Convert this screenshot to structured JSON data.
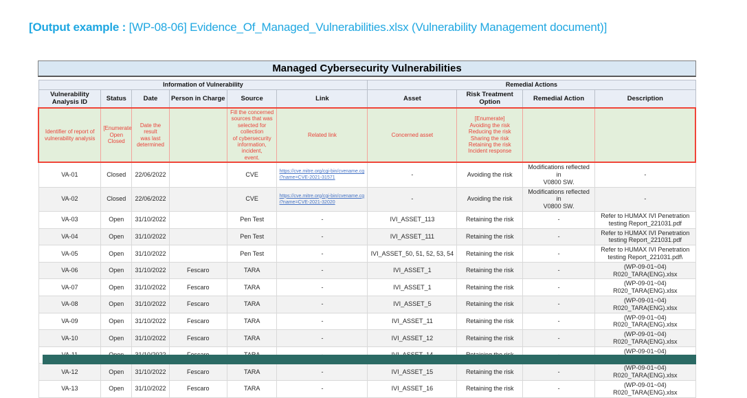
{
  "caption": {
    "bold": "[Output example :",
    "rest": " [WP-08-06] Evidence_Of_Managed_Vulnerabilities.xlsx (Vulnerability Management document)]"
  },
  "colors": {
    "caption_accent": "#1FA7E1",
    "sheet_title_bg": "#D9E7F3",
    "header_bg": "#E9EEF6",
    "instruction_bg": "#E3EFDB",
    "instruction_border": "#F04438",
    "instruction_text": "#E8433A",
    "link_blue": "#4472C4",
    "alt_row_bg": "#F2F2F2",
    "bottom_bar": "#2B6A64"
  },
  "table": {
    "title": "Managed Cybersecurity Vulnerabilities",
    "group_headers": [
      "Information of Vulnerability",
      "Remedial Actions"
    ],
    "columns": [
      "Vulnerability\nAnalysis ID",
      "Status",
      "Date",
      "Person in Charge",
      "Source",
      "Link",
      "Asset",
      "Risk Treatment Option",
      "Remedial Action",
      "Description"
    ],
    "instruction_row": [
      "Identifier of report of\nvulnerability analysis",
      "[Enumerate]\nOpen\nClosed",
      "Date the result\nwas last\ndetermined",
      "",
      "Fill the concerned\nsources that was\nselected for collection\nof cybersecurity\ninformation, incident,\nevent.",
      "Related link",
      "Concerned asset",
      "[Enumerate]\nAvoiding the risk\nReducing the risk\nSharing the risk\nRetaining the risk\nIncident response",
      "",
      ""
    ],
    "rows": [
      [
        "VA-01",
        "Closed",
        "22/06/2022",
        "",
        "CVE",
        "https://cve.mitre.org/cgi-bin/cvename.cgi?name=CVE-2021-31571",
        "-",
        "Avoiding the risk",
        "Modifications reflected in\nV0800 SW.",
        "-"
      ],
      [
        "VA-02",
        "Closed",
        "22/06/2022",
        "",
        "CVE",
        "https://cve.mitre.org/cgi-bin/cvename.cgi?name=CVE-2021-32020",
        "-",
        "Avoiding the risk",
        "Modifications reflected in\nV0800 SW.",
        "-"
      ],
      [
        "VA-03",
        "Open",
        "31/10/2022",
        "",
        "Pen Test",
        "-",
        "IVI_ASSET_113",
        "Retaining the risk",
        "-",
        "Refer to HUMAX IVI Penetration\ntesting Report_221031.pdf"
      ],
      [
        "VA-04",
        "Open",
        "31/10/2022",
        "",
        "Pen Test",
        "-",
        "IVI_ASSET_111",
        "Retaining the risk",
        "-",
        "Refer to HUMAX IVI Penetration\ntesting Report_221031.pdf"
      ],
      [
        "VA-05",
        "Open",
        "31/10/2022",
        "",
        "Pen Test",
        "-",
        "IVI_ASSET_50, 51, 52, 53, 54",
        "Retaining the risk",
        "-",
        "Refer to HUMAX IVI Penetration\ntesting Report_221031.pdf\\"
      ],
      [
        "VA-06",
        "Open",
        "31/10/2022",
        "Fescaro",
        "TARA",
        "-",
        "IVI_ASSET_1",
        "Retaining the risk",
        "-",
        "(WP-09-01~04)\nR020_TARA(ENG).xlsx"
      ],
      [
        "VA-07",
        "Open",
        "31/10/2022",
        "Fescaro",
        "TARA",
        "-",
        "IVI_ASSET_1",
        "Retaining the risk",
        "-",
        "(WP-09-01~04)\nR020_TARA(ENG).xlsx"
      ],
      [
        "VA-08",
        "Open",
        "31/10/2022",
        "Fescaro",
        "TARA",
        "-",
        "IVI_ASSET_5",
        "Retaining the risk",
        "-",
        "(WP-09-01~04)\nR020_TARA(ENG).xlsx"
      ],
      [
        "VA-09",
        "Open",
        "31/10/2022",
        "Fescaro",
        "TARA",
        "-",
        "IVI_ASSET_11",
        "Retaining the risk",
        "-",
        "(WP-09-01~04)\nR020_TARA(ENG).xlsx"
      ],
      [
        "VA-10",
        "Open",
        "31/10/2022",
        "Fescaro",
        "TARA",
        "-",
        "IVI_ASSET_12",
        "Retaining the risk",
        "-",
        "(WP-09-01~04)\nR020_TARA(ENG).xlsx"
      ],
      [
        "VA-11",
        "Open",
        "31/10/2022",
        "Fescaro",
        "TARA",
        "-",
        "IVI_ASSET_14",
        "Retaining the risk",
        "-",
        "(WP-09-01~04)\nR020_TARA(ENG).xlsx"
      ],
      [
        "VA-12",
        "Open",
        "31/10/2022",
        "Fescaro",
        "TARA",
        "-",
        "IVI_ASSET_15",
        "Retaining the risk",
        "-",
        "(WP-09-01~04)\nR020_TARA(ENG).xlsx"
      ],
      [
        "VA-13",
        "Open",
        "31/10/2022",
        "Fescaro",
        "TARA",
        "-",
        "IVI_ASSET_16",
        "Retaining the risk",
        "-",
        "(WP-09-01~04)\nR020_TARA(ENG).xlsx"
      ]
    ]
  }
}
